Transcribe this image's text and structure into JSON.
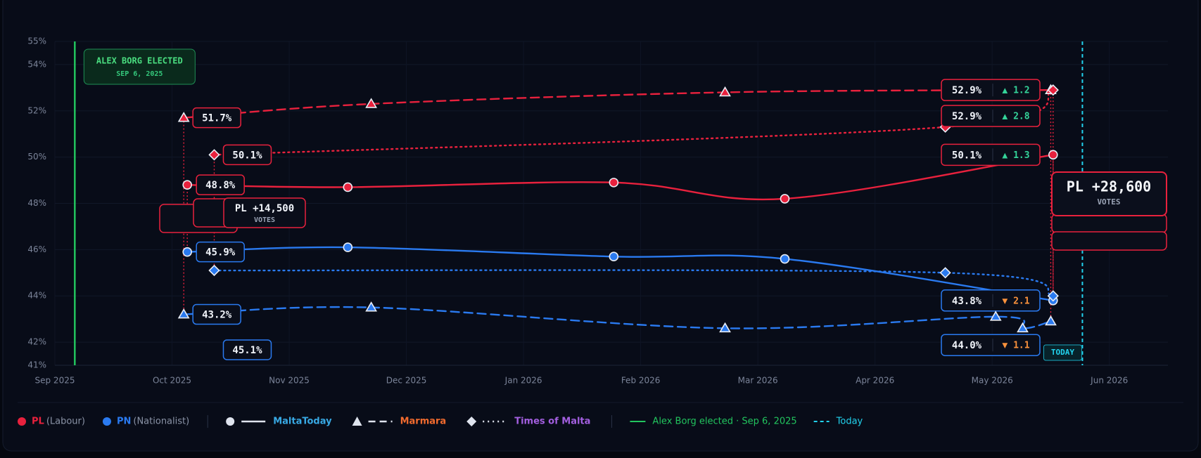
{
  "chart_data": {
    "type": "line",
    "xlim": [
      0,
      9.5
    ],
    "xticks": [
      {
        "value": 0,
        "label": "Sep 2025"
      },
      {
        "value": 1,
        "label": "Oct 2025"
      },
      {
        "value": 2,
        "label": "Nov 2025"
      },
      {
        "value": 3,
        "label": "Dec 2025"
      },
      {
        "value": 4,
        "label": "Jan 2026"
      },
      {
        "value": 5,
        "label": "Feb 2026"
      },
      {
        "value": 6,
        "label": "Mar 2026"
      },
      {
        "value": 7,
        "label": "Apr 2026"
      },
      {
        "value": 8,
        "label": "May 2026"
      },
      {
        "value": 9,
        "label": "Jun 2026"
      }
    ],
    "ylim": [
      41,
      55
    ],
    "yticks": [
      {
        "value": 41,
        "label": "41%"
      },
      {
        "value": 42,
        "label": "42%"
      },
      {
        "value": 44,
        "label": "44%"
      },
      {
        "value": 46,
        "label": "46%"
      },
      {
        "value": 48,
        "label": "48%"
      },
      {
        "value": 50,
        "label": "50%"
      },
      {
        "value": 52,
        "label": "52%"
      },
      {
        "value": 54,
        "label": "54%"
      },
      {
        "value": 55,
        "label": "55%"
      }
    ],
    "grid": true,
    "parties": [
      {
        "name": "PL",
        "description": "(Labour)",
        "color": "#e8213d"
      },
      {
        "name": "PN",
        "description": "(Nationalist)",
        "color": "#2a7af0"
      }
    ],
    "pollsters": [
      {
        "name": "MaltaToday",
        "color": "#38a9e4",
        "dash": "solid",
        "marker": "circle",
        "lines": [
          {
            "x": [
              1.13,
              2.5,
              4.77,
              6.23,
              8.52
            ],
            "values": [
              48.8,
              48.7,
              48.9,
              48.2,
              50.1
            ],
            "value_labels": [
              "48.8%",
              null,
              null,
              null,
              "50.1%"
            ],
            "change_label": "▲ 1.3"
          },
          {
            "x": [
              1.13,
              2.5,
              4.77,
              6.23,
              8.52
            ],
            "values": [
              45.9,
              46.1,
              45.7,
              45.6,
              43.8
            ],
            "value_labels": [
              "45.9%",
              null,
              null,
              null,
              "43.8%"
            ],
            "change_label": "▼ 2.1"
          }
        ]
      },
      {
        "name": "Marmara",
        "color": "#f26b2e",
        "dash": "dashed",
        "marker": "triangle",
        "lines": [
          {
            "x": [
              1.1,
              2.7,
              5.72,
              8.5
            ],
            "values": [
              51.7,
              52.3,
              52.8,
              52.9
            ],
            "value_labels": [
              "51.7%",
              null,
              null,
              "52.9%"
            ],
            "change_label": "▲ 1.2"
          },
          {
            "x": [
              1.1,
              2.7,
              5.72,
              8.03,
              8.26,
              8.5
            ],
            "values": [
              43.2,
              43.5,
              42.6,
              43.1,
              42.6,
              42.9
            ],
            "value_labels": [
              "43.2%",
              null,
              null,
              null,
              null,
              null
            ]
          }
        ]
      },
      {
        "name": "Times of Malta",
        "color": "#a35fe0",
        "dash": "dotted",
        "marker": "diamond",
        "lines": [
          {
            "x": [
              1.36,
              7.6,
              8.52
            ],
            "values": [
              50.1,
              51.3,
              52.9
            ],
            "value_labels": [
              "50.1%",
              null,
              "52.9%"
            ],
            "change_label": "▲ 2.8"
          },
          {
            "x": [
              1.36,
              7.6,
              8.52
            ],
            "values": [
              45.1,
              45.0,
              44.0
            ],
            "value_labels": [
              "45.1%",
              null,
              "44.0%"
            ],
            "change_label": "▼ 1.1"
          }
        ]
      }
    ],
    "callouts": [
      {
        "label": "PL +14,500",
        "sub": "VOTES"
      },
      {
        "label": "PL +28,600",
        "sub": "VOTES"
      }
    ],
    "events": [
      {
        "label": "ALEX BORG ELECTED",
        "date": "SEP 6, 2025",
        "legend": "Alex Borg elected · Sep 6, 2025",
        "x": 0.17,
        "color": "#22c55e"
      },
      {
        "label": "TODAY",
        "legend": "Today",
        "x": 8.77,
        "color": "#22d3ee"
      }
    ]
  }
}
